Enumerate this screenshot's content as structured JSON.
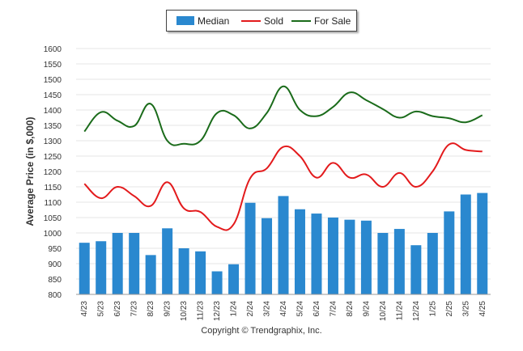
{
  "chart_data": {
    "type": "bar+line",
    "categories": [
      "4/23",
      "5/23",
      "6/23",
      "7/23",
      "8/23",
      "9/23",
      "10/23",
      "11/23",
      "12/23",
      "1/24",
      "2/24",
      "3/24",
      "4/24",
      "5/24",
      "6/24",
      "7/24",
      "8/24",
      "9/24",
      "10/24",
      "11/24",
      "12/24",
      "1/25",
      "2/25",
      "3/25",
      "4/25"
    ],
    "series": [
      {
        "name": "Median",
        "kind": "bar",
        "color": "#2a88cf",
        "values": [
          968,
          973,
          1000,
          1000,
          928,
          1015,
          950,
          940,
          875,
          898,
          1098,
          1048,
          1120,
          1077,
          1063,
          1050,
          1043,
          1040,
          1000,
          1013,
          960,
          1000,
          1070,
          1125,
          1130
        ]
      },
      {
        "name": "Sold",
        "kind": "line",
        "color": "#e31a1c",
        "values": [
          1160,
          1113,
          1150,
          1120,
          1088,
          1165,
          1080,
          1068,
          1020,
          1028,
          1178,
          1210,
          1280,
          1250,
          1180,
          1228,
          1180,
          1190,
          1150,
          1195,
          1150,
          1200,
          1288,
          1270,
          1265
        ]
      },
      {
        "name": "For Sale",
        "kind": "line",
        "color": "#1a6b1a",
        "values": [
          1330,
          1393,
          1365,
          1348,
          1420,
          1300,
          1290,
          1300,
          1390,
          1383,
          1340,
          1390,
          1477,
          1400,
          1380,
          1410,
          1457,
          1432,
          1403,
          1375,
          1395,
          1380,
          1373,
          1360,
          1383
        ]
      }
    ],
    "ylabel": "Average Price (in $,000)",
    "ylim": [
      800,
      1600
    ],
    "yticks": [
      800,
      850,
      900,
      950,
      1000,
      1050,
      1100,
      1150,
      1200,
      1250,
      1300,
      1350,
      1400,
      1450,
      1500,
      1550,
      1600
    ],
    "grid": true,
    "legend_position": "top-center"
  },
  "footer": {
    "copyright": "Copyright © Trendgraphix, Inc."
  }
}
